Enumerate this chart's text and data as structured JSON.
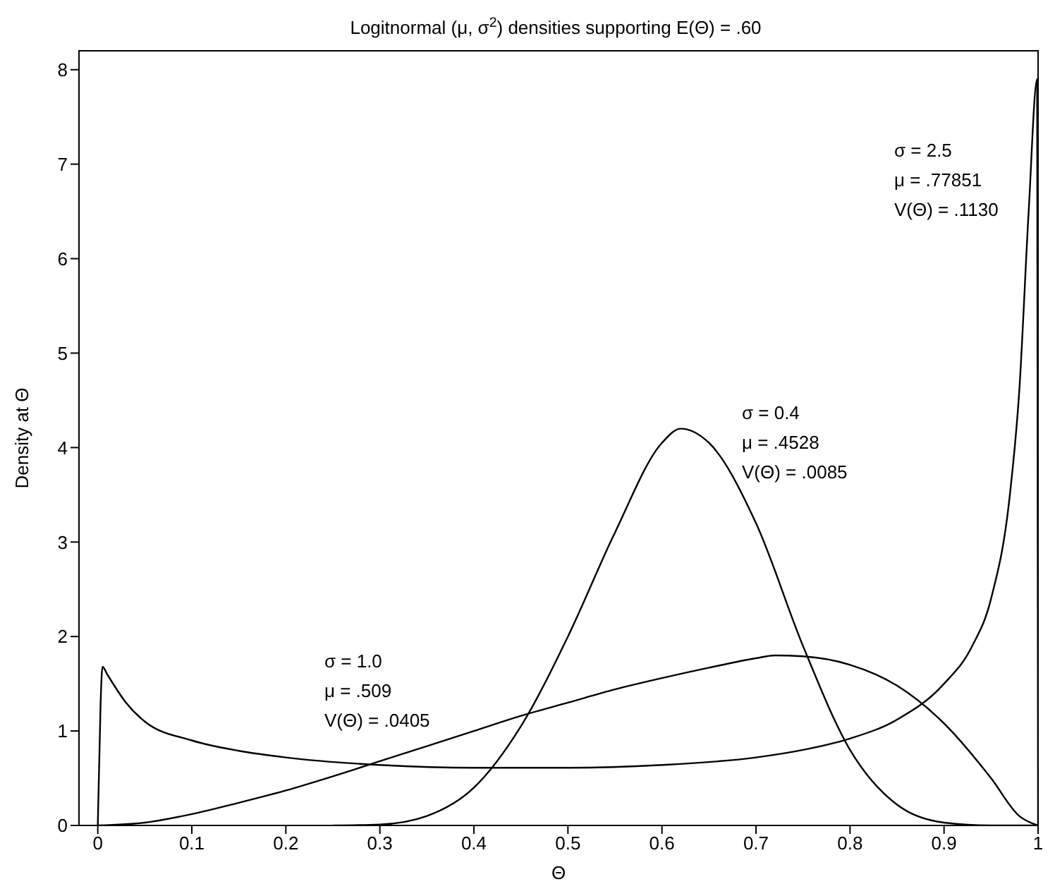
{
  "chart_data": {
    "type": "line",
    "title": "Logitnormal (μ, σ$^{2}$) densities supporting E(Θ) = .60",
    "xlabel": "Θ",
    "ylabel": "Density at Θ",
    "xlim": [
      -0.02,
      1
    ],
    "xticks": [
      0,
      0.1,
      0.2,
      0.3,
      0.4,
      0.5,
      0.6,
      0.7,
      0.8,
      0.9,
      1
    ],
    "ylim": [
      0,
      8.2
    ],
    "yticks": [
      0,
      1,
      2,
      3,
      4,
      5,
      6,
      7,
      8
    ],
    "grid": false,
    "marker": "none",
    "line_style": "solid",
    "series": [
      {
        "color": "#000000",
        "x": [
          0.25,
          0.3,
          0.35,
          0.4,
          0.45,
          0.5,
          0.55,
          0.6,
          0.62,
          0.65,
          0.7,
          0.75,
          0.8,
          0.85,
          0.9,
          0.95,
          1
        ],
        "values": [
          0,
          0.01,
          0.1,
          0.4,
          1.05,
          2.0,
          3.1,
          4.05,
          4.2,
          4.05,
          3.2,
          1.9,
          0.8,
          0.22,
          0.03,
          0,
          0
        ]
      },
      {
        "color": "#000000",
        "x": [
          0,
          0.05,
          0.1,
          0.15,
          0.2,
          0.25,
          0.3,
          0.35,
          0.4,
          0.45,
          0.5,
          0.55,
          0.6,
          0.65,
          0.7,
          0.72,
          0.75,
          0.8,
          0.85,
          0.9,
          0.95,
          0.98,
          1
        ],
        "values": [
          0,
          0.03,
          0.12,
          0.24,
          0.37,
          0.52,
          0.68,
          0.84,
          1.0,
          1.16,
          1.3,
          1.44,
          1.56,
          1.67,
          1.77,
          1.8,
          1.79,
          1.7,
          1.48,
          1.08,
          0.5,
          0.1,
          0
        ]
      },
      {
        "color": "#000000",
        "x": [
          0,
          0.003,
          0.005,
          0.01,
          0.03,
          0.05,
          0.1,
          0.15,
          0.2,
          0.3,
          0.4,
          0.5,
          0.6,
          0.7,
          0.75,
          0.8,
          0.85,
          0.9,
          0.93,
          0.95,
          0.97,
          0.98,
          0.99,
          0.999,
          1
        ],
        "values": [
          0,
          1.3,
          1.68,
          1.6,
          1.3,
          1.1,
          0.9,
          0.79,
          0.72,
          0.64,
          0.61,
          0.61,
          0.64,
          0.72,
          0.8,
          0.92,
          1.12,
          1.5,
          1.9,
          2.4,
          3.5,
          4.6,
          6.5,
          7.9,
          0
        ]
      }
    ],
    "annotations": [
      "σ = 2.5\nμ = .77851\nV(Θ) = .1130",
      "σ = 0.4\nμ = .4528\nV(Θ) = .0085",
      "σ = 1.0\nμ = .509\nV(Θ) = .0405"
    ]
  }
}
